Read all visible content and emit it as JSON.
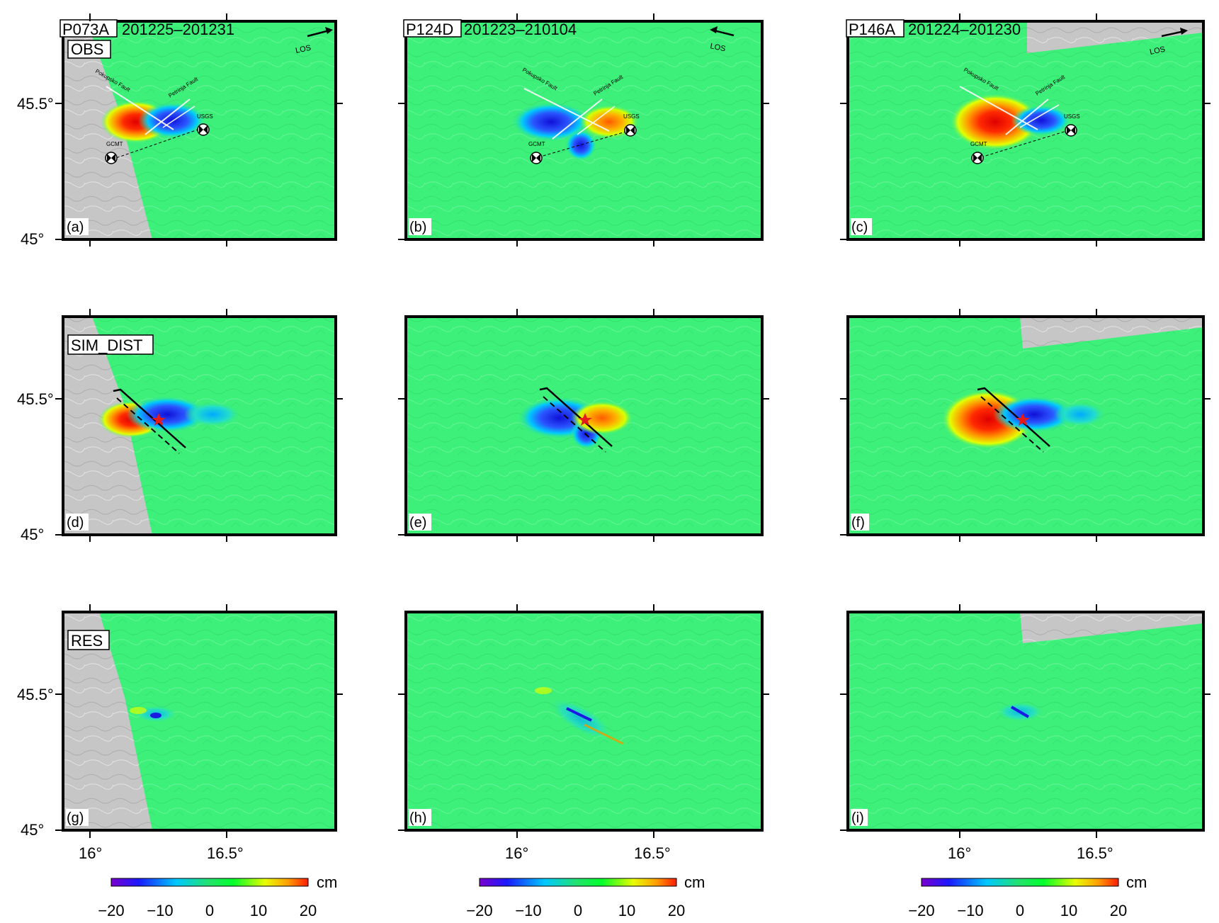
{
  "colorbar": {
    "unit": "cm",
    "ticks": [
      "−20",
      "−10",
      "0",
      "10",
      "20"
    ],
    "range": [
      -20,
      20
    ],
    "palette": [
      "#7a00cc",
      "#1a1aff",
      "#00c8ff",
      "#22e36a",
      "#00ff2a",
      "#e8ff00",
      "#ff9c00",
      "#ff1a00"
    ]
  },
  "axes": {
    "lat_labels": [
      "45.5°",
      "45°"
    ],
    "lon_labels": [
      "16°",
      "16.5°"
    ]
  },
  "tracks": [
    {
      "id": "P073A",
      "dates": "201225–201231"
    },
    {
      "id": "P124D",
      "dates": "201223–210104"
    },
    {
      "id": "P146A",
      "dates": "201224–201230"
    }
  ],
  "rows": [
    {
      "label": "OBS"
    },
    {
      "label": "SIM_DIST"
    },
    {
      "label": "RES"
    }
  ],
  "panels": [
    {
      "letter": "(a)"
    },
    {
      "letter": "(b)"
    },
    {
      "letter": "(c)"
    },
    {
      "letter": "(d)"
    },
    {
      "letter": "(e)"
    },
    {
      "letter": "(f)"
    },
    {
      "letter": "(g)"
    },
    {
      "letter": "(h)"
    },
    {
      "letter": "(i)"
    }
  ],
  "annotations": {
    "los": "LOS",
    "fault_1": "Pokupsko Fault",
    "fault_2": "Petrinja Fault",
    "usgs": "USGS",
    "gcmt": "GCMT"
  },
  "colors": {
    "field": "#3cf07a",
    "masked": "#c6c6c6",
    "positive": "#ff1f00",
    "negative": "#1c22e8",
    "model_fault": "#111111",
    "epicenter": "#e51b1b"
  }
}
